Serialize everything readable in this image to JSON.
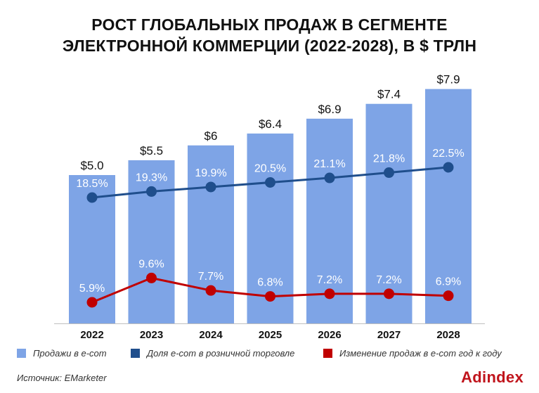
{
  "title_line1": "РОСТ ГЛОБАЛЬНЫХ ПРОДАЖ В СЕГМЕНТЕ",
  "title_line2": "ЭЛЕКТРОННОЙ КОММЕРЦИИ (2022-2028), В $ ТРЛН",
  "source": "Источник: EMarketer",
  "brand": "Adindex",
  "colors": {
    "bars": "#7ea4e6",
    "share_line": "#1f4e8c",
    "change_line": "#c00000"
  },
  "chart_data": {
    "type": "bar",
    "categories": [
      "2022",
      "2023",
      "2024",
      "2025",
      "2026",
      "2027",
      "2028"
    ],
    "series": [
      {
        "name": "Продажи в e-com",
        "type": "bar",
        "values": [
          5.0,
          5.5,
          6.0,
          6.4,
          6.9,
          7.4,
          7.9
        ],
        "labels": [
          "$5.0",
          "$5.5",
          "$6",
          "$6.4",
          "$6.9",
          "$7.4",
          "$7.9"
        ]
      },
      {
        "name": "Доля e-com в розничной торговле",
        "type": "line",
        "values": [
          18.5,
          19.3,
          19.9,
          20.5,
          21.1,
          21.8,
          22.5
        ],
        "labels": [
          "18.5%",
          "19.3%",
          "19.9%",
          "20.5%",
          "21.1%",
          "21.8%",
          "22.5%"
        ]
      },
      {
        "name": "Изменение продаж в e-com год к году",
        "type": "line",
        "values": [
          5.9,
          9.6,
          7.7,
          6.8,
          7.2,
          7.2,
          6.9
        ],
        "labels": [
          "5.9%",
          "9.6%",
          "7.7%",
          "6.8%",
          "7.2%",
          "7.2%",
          "6.9%"
        ]
      }
    ],
    "legend_position": "bottom",
    "grid": false
  }
}
